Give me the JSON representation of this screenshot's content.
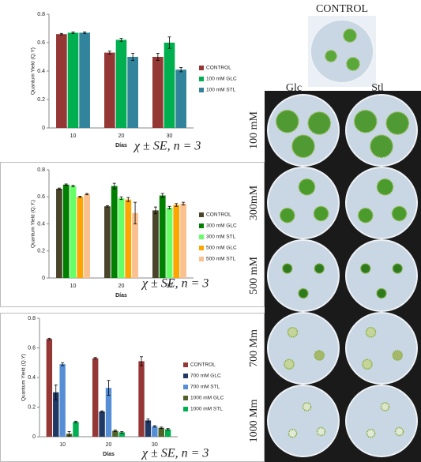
{
  "chart_data": [
    {
      "type": "bar",
      "y_label": "Quantum Yield (Q.Y)",
      "x_label": "Días",
      "annotation": "χ ± SE, n = 3",
      "categories": [
        "10",
        "20",
        "30"
      ],
      "ylim": [
        0,
        0.8
      ],
      "yticks": [
        0,
        0.2,
        0.4,
        0.6,
        0.8
      ],
      "series": [
        {
          "name": "CONTROL",
          "color": "#953735",
          "values": [
            0.66,
            0.53,
            0.5
          ],
          "errors": [
            0.005,
            0.01,
            0.025
          ]
        },
        {
          "name": "100 mM GLC",
          "color": "#00b050",
          "values": [
            0.67,
            0.62,
            0.6
          ],
          "errors": [
            0.005,
            0.01,
            0.04
          ]
        },
        {
          "name": "100 mM STL",
          "color": "#31849b",
          "values": [
            0.67,
            0.5,
            0.41
          ],
          "errors": [
            0.005,
            0.025,
            0.015
          ]
        }
      ]
    },
    {
      "type": "bar",
      "y_label": "Quantum Yield (Q.Y.)",
      "x_label": "Días",
      "annotation": "χ ± SE, n = 3",
      "categories": [
        "10",
        "20",
        "30"
      ],
      "ylim": [
        0,
        0.8
      ],
      "yticks": [
        0,
        0.2,
        0.4,
        0.6,
        0.8
      ],
      "series": [
        {
          "name": "CONTROL",
          "color": "#4a452a",
          "values": [
            0.66,
            0.53,
            0.5
          ],
          "errors": [
            0.005,
            0.005,
            0.025
          ]
        },
        {
          "name": "300 mM GLC",
          "color": "#008000",
          "values": [
            0.69,
            0.68,
            0.61
          ],
          "errors": [
            0.005,
            0.02,
            0.015
          ]
        },
        {
          "name": "300 mM STL",
          "color": "#66ff66",
          "values": [
            0.68,
            0.59,
            0.52
          ],
          "errors": [
            0.005,
            0.01,
            0.01
          ]
        },
        {
          "name": "500 mM GLC",
          "color": "#ffa500",
          "values": [
            0.6,
            0.58,
            0.54
          ],
          "errors": [
            0.005,
            0.015,
            0.01
          ]
        },
        {
          "name": "500 mM STL",
          "color": "#fac090",
          "values": [
            0.62,
            0.48,
            0.55
          ],
          "errors": [
            0.005,
            0.08,
            0.01
          ]
        }
      ]
    },
    {
      "type": "bar",
      "y_label": "Quantum Yield (Q.Y)",
      "x_label": "Días",
      "annotation": "χ ± SE, n = 3",
      "categories": [
        "10",
        "20",
        "30"
      ],
      "ylim": [
        0,
        0.8
      ],
      "yticks": [
        0,
        0.2,
        0.4,
        0.6,
        0.8
      ],
      "series": [
        {
          "name": "CONTROL",
          "color": "#953735",
          "values": [
            0.66,
            0.53,
            0.51
          ],
          "errors": [
            0.005,
            0.005,
            0.03
          ]
        },
        {
          "name": "700 mM GLC",
          "color": "#1f3864",
          "values": [
            0.3,
            0.17,
            0.11
          ],
          "errors": [
            0.05,
            0.005,
            0.01
          ]
        },
        {
          "name": "700 mM STL",
          "color": "#558ed5",
          "values": [
            0.49,
            0.33,
            0.07
          ],
          "errors": [
            0.01,
            0.05,
            0.005
          ]
        },
        {
          "name": "1000 mM GLC",
          "color": "#4f6228",
          "values": [
            0.02,
            0.04,
            0.06
          ],
          "errors": [
            0.015,
            0.005,
            0.005
          ]
        },
        {
          "name": "1000 mM STL",
          "color": "#00b050",
          "values": [
            0.1,
            0.03,
            0.05
          ],
          "errors": [
            0.005,
            0.005,
            0.005
          ]
        }
      ]
    }
  ],
  "photos": {
    "title": "CONTROL",
    "columns": [
      "Glc",
      "Stl"
    ],
    "rows": [
      "100 mM",
      "300mM",
      "500 mM",
      "700 Mm",
      "1000 Mm"
    ]
  }
}
